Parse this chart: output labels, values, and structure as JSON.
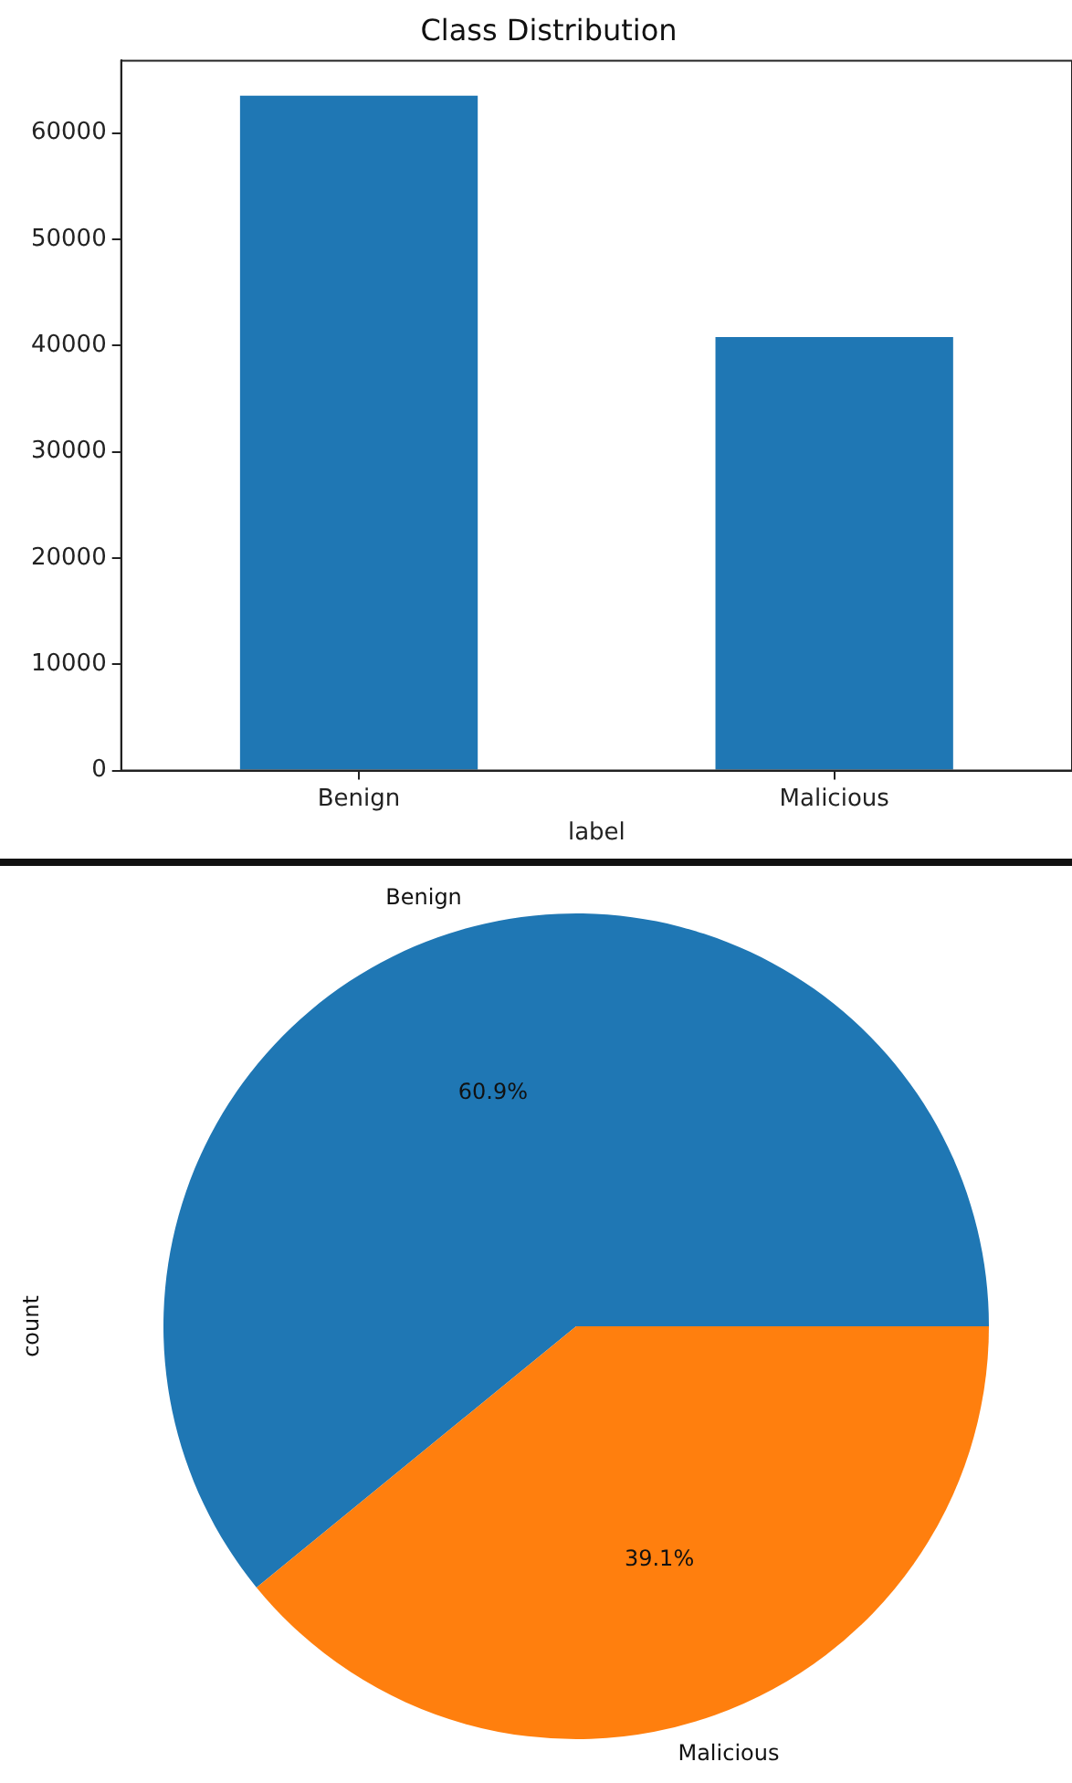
{
  "chart_data": [
    {
      "type": "bar",
      "title": "Class Distribution",
      "xlabel": "label",
      "categories": [
        "Benign",
        "Malicious"
      ],
      "values": [
        63500,
        40800
      ],
      "color": "#1f77b4",
      "ylim": [
        0,
        66800
      ],
      "yticks": [
        0,
        10000,
        20000,
        30000,
        40000,
        50000,
        60000
      ],
      "grid": false,
      "legend": false
    },
    {
      "type": "pie",
      "ylabel": "count",
      "categories": [
        "Benign",
        "Malicious"
      ],
      "values": [
        60.9,
        39.1
      ],
      "value_labels": [
        "60.9%",
        "39.1%"
      ],
      "colors": [
        "#1f77b4",
        "#ff7f0e"
      ],
      "legend": false
    }
  ]
}
